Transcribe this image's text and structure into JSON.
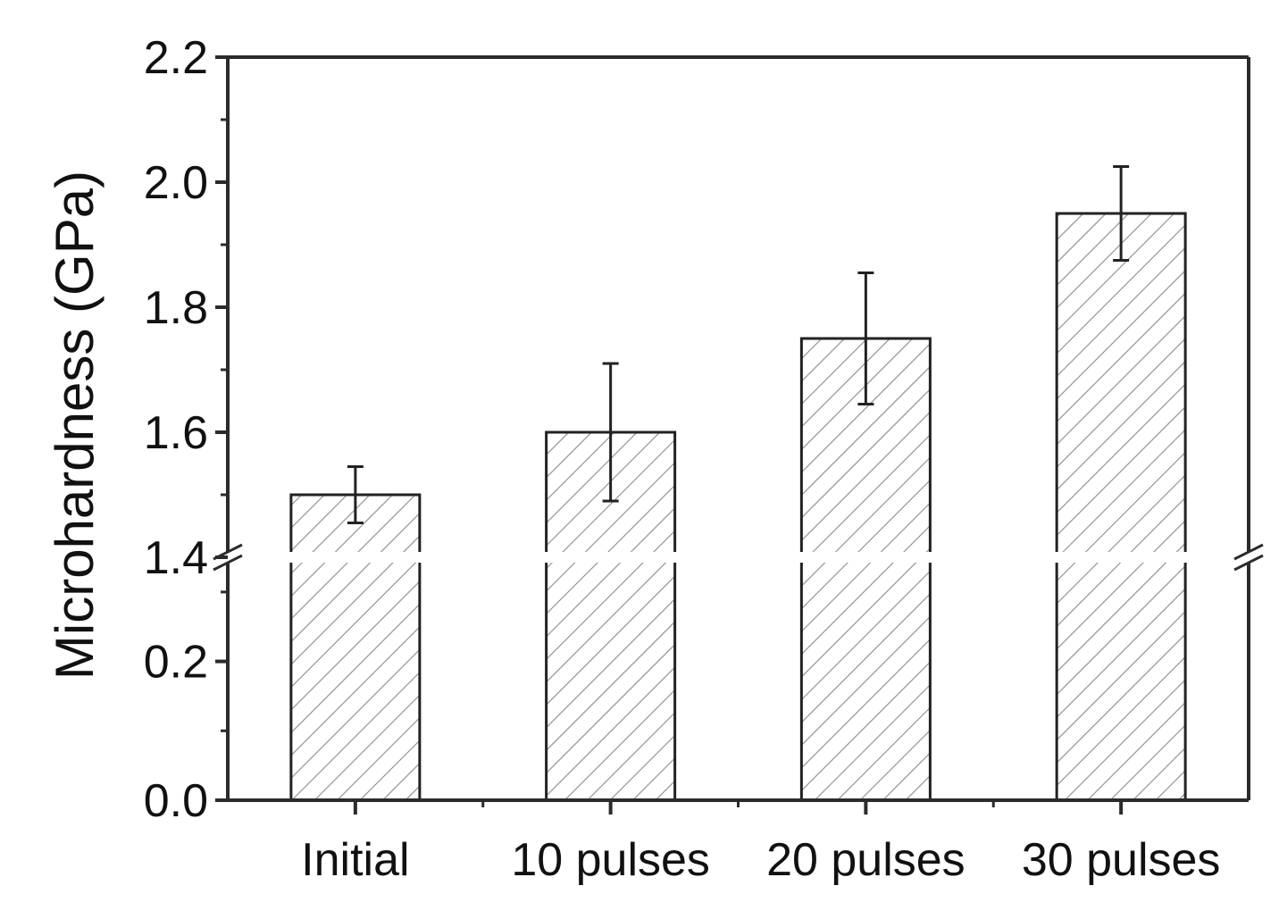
{
  "chart_data": {
    "type": "bar",
    "title": "",
    "xlabel": "",
    "ylabel": "Microhardness (GPa)",
    "categories": [
      "Initial",
      "10 pulses",
      "20 pulses",
      "30 pulses"
    ],
    "values": [
      1.5,
      1.6,
      1.75,
      1.95
    ],
    "error": [
      0.045,
      0.11,
      0.105,
      0.075
    ],
    "yticks_lower": [
      "0.0",
      "0.2"
    ],
    "yticks_upper": [
      "1.4",
      "1.6",
      "1.8",
      "2.0",
      "2.2"
    ],
    "y_break": [
      0.35,
      1.4
    ],
    "ylim": [
      0,
      2.2
    ],
    "grid": false,
    "legend": false,
    "bar_fill": "hatched",
    "colors": {
      "axis": "#2b2b2b",
      "bar_edge": "#222222",
      "hatch": "#8a8a8a"
    }
  }
}
